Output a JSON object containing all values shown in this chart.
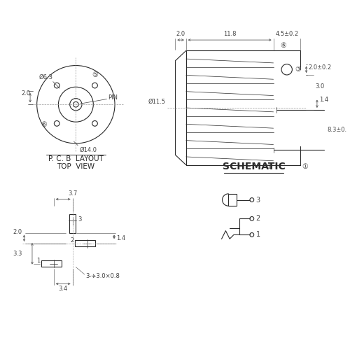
{
  "bg_color": "#ffffff",
  "line_color": "#2a2a2a",
  "dim_color": "#444444",
  "font_size_small": 6.0,
  "font_size_medium": 7.0,
  "font_size_large": 9,
  "font_size_title": 7.5,
  "annotations": {
    "pcb_title_line1": "P. C. B  LAYOUT",
    "pcb_title_line2": "TOP  VIEW",
    "schematic_title": "SCHEMATIC",
    "dim_phi63": "Ø6.3",
    "dim_phi14": "Ø14.0",
    "dim_phi115": "Ø11.5",
    "dim_20_left": "2.0",
    "dim_118": "11.8",
    "dim_45": "4.5±0.2",
    "dim_20_right": "2.0±0.2",
    "dim_83": "8.3±0.",
    "dim_14_side": "1.4",
    "dim_30": "3.0",
    "dim_37_pcb": "3.7",
    "dim_34_pcb": "3.4",
    "dim_20_pcb": "2.0",
    "dim_33_pcb": "3.3",
    "dim_14_pcb": "1.4",
    "dim_3_holes": "3-✈3.0×0.8",
    "pin_label": "PIN",
    "sch1": "1",
    "sch2": "2",
    "sch3": "3"
  }
}
